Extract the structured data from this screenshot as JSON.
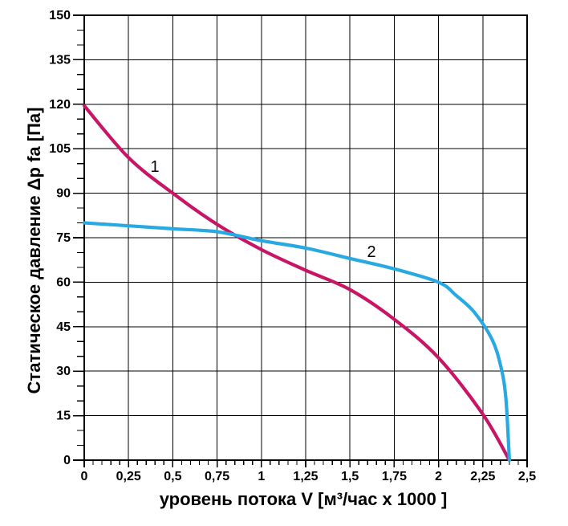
{
  "chart_data": {
    "type": "line",
    "title": "",
    "xlabel": "уровень потока  V [м³/час x 1000 ]",
    "ylabel": "Статическое давление  Δp fa [Па]",
    "xlim": [
      0,
      2.5
    ],
    "ylim": [
      0,
      150
    ],
    "x_major_step": 0.25,
    "x_minor_step": 0.05,
    "y_major_step": 15,
    "y_minor_step": 5,
    "grid": "major-both",
    "legend_position": "none",
    "x_tick_labels": [
      "0",
      "0,25",
      "0,5",
      "0,75",
      "1",
      "1,25",
      "1,5",
      "1,75",
      "2",
      "2,25",
      "2,5"
    ],
    "y_tick_labels": [
      "0",
      "15",
      "30",
      "45",
      "60",
      "75",
      "90",
      "105",
      "120",
      "135",
      "150"
    ],
    "series": [
      {
        "name": "1",
        "description": "curve 1 - static pressure vs flow",
        "color": "#C81566",
        "points": [
          [
            0,
            119.5
          ],
          [
            0.25,
            102
          ],
          [
            0.5,
            90
          ],
          [
            0.75,
            79.5
          ],
          [
            1,
            71
          ],
          [
            1.25,
            64
          ],
          [
            1.5,
            57.5
          ],
          [
            1.75,
            47.5
          ],
          [
            2,
            34.5
          ],
          [
            2.25,
            15.5
          ],
          [
            2.4,
            0
          ]
        ]
      },
      {
        "name": "2",
        "description": "curve 2 - static pressure vs flow",
        "color": "#29A9E1",
        "points": [
          [
            0,
            80
          ],
          [
            0.25,
            79
          ],
          [
            0.5,
            78
          ],
          [
            0.75,
            77
          ],
          [
            1,
            74
          ],
          [
            1.25,
            71.5
          ],
          [
            1.5,
            68
          ],
          [
            1.75,
            64.5
          ],
          [
            2,
            60
          ],
          [
            2.1,
            55.5
          ],
          [
            2.2,
            50
          ],
          [
            2.3,
            41
          ],
          [
            2.35,
            32
          ],
          [
            2.38,
            21
          ],
          [
            2.4,
            0
          ]
        ]
      }
    ],
    "annotations": [
      {
        "text": "1",
        "data_xy": [
          0.4,
          99
        ]
      },
      {
        "text": "2",
        "data_xy": [
          1.62,
          70.5
        ]
      }
    ]
  },
  "colors": {
    "background": "#ffffff",
    "grid": "#000000",
    "axis": "#000000",
    "text": "#000000",
    "series1": "#C81566",
    "series2": "#29A9E1"
  }
}
